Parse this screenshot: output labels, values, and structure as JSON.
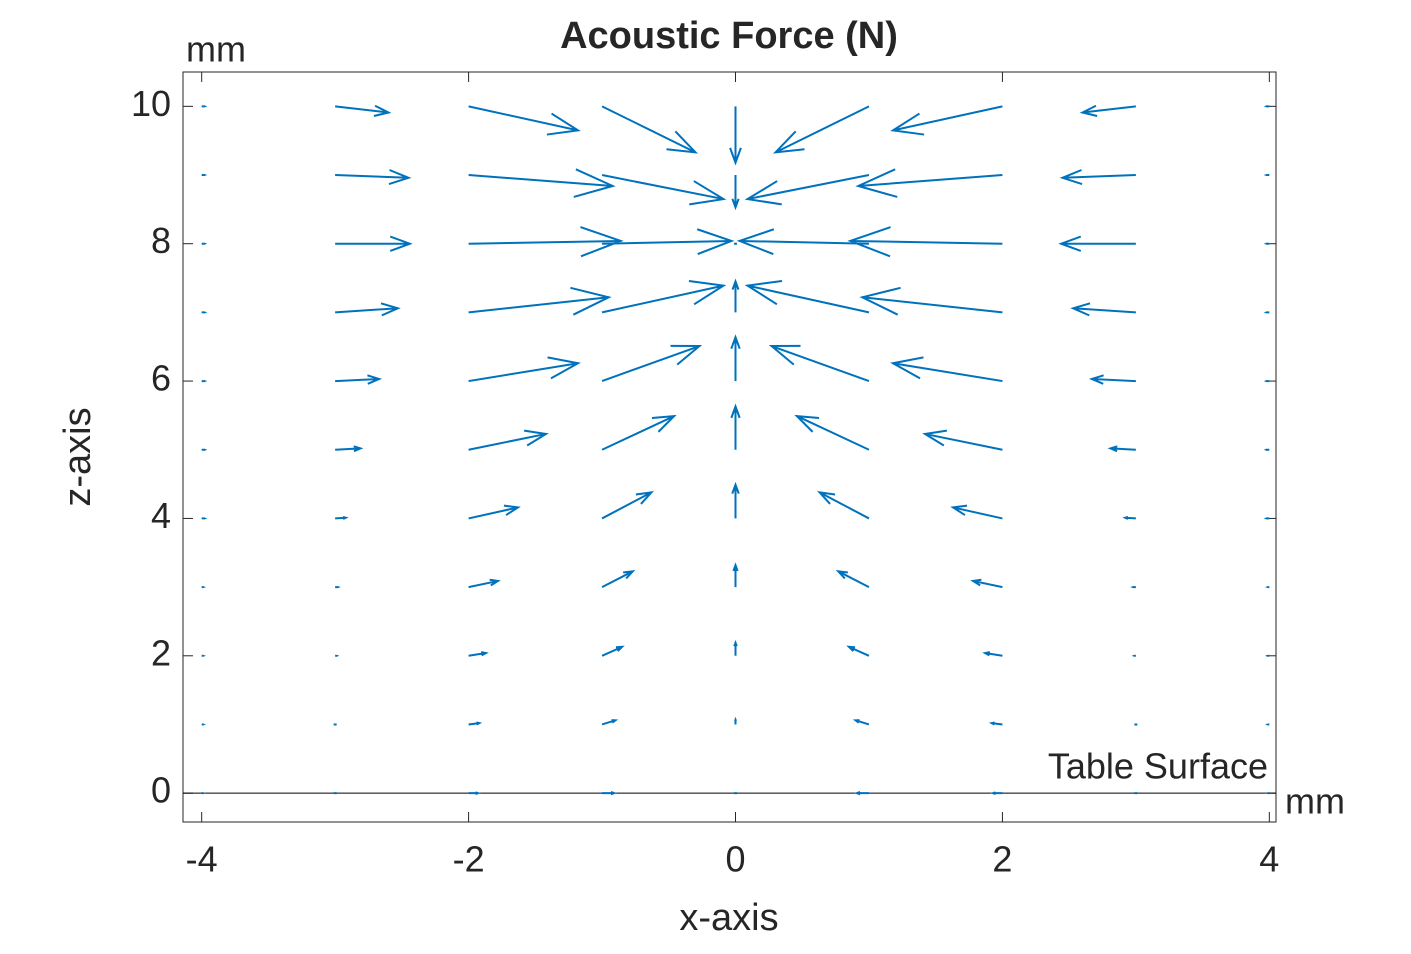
{
  "chart_data": {
    "type": "quiver",
    "title": "Acoustic Force (N)",
    "x_label": "x-axis",
    "y_label": "z-axis",
    "x_unit": "mm",
    "y_unit": "mm",
    "reference_line": {
      "y": 0,
      "label": "Table Surface"
    },
    "color": "#0072bd",
    "xlim": [
      -4.14,
      4.05
    ],
    "ylim": [
      -0.42,
      10.5
    ],
    "xticks": [
      -4,
      -2,
      0,
      2,
      4
    ],
    "yticks": [
      0,
      2,
      4,
      6,
      8,
      10
    ],
    "x": [
      -4,
      -3,
      -2,
      -1,
      0,
      1,
      2,
      3,
      4,
      -4,
      -3,
      -2,
      -1,
      0,
      1,
      2,
      3,
      4,
      -4,
      -3,
      -2,
      -1,
      0,
      1,
      2,
      3,
      4,
      -4,
      -3,
      -2,
      -1,
      0,
      1,
      2,
      3,
      4,
      -4,
      -3,
      -2,
      -1,
      0,
      1,
      2,
      3,
      4,
      -4,
      -3,
      -2,
      -1,
      0,
      1,
      2,
      3,
      4,
      -4,
      -3,
      -2,
      -1,
      0,
      1,
      2,
      3,
      4,
      -4,
      -3,
      -2,
      -1,
      0,
      1,
      2,
      3,
      4,
      -4,
      -3,
      -2,
      -1,
      0,
      1,
      2,
      3,
      4,
      -4,
      -3,
      -2,
      -1,
      0,
      1,
      2,
      3,
      4,
      -4,
      -3,
      -2,
      -1,
      0,
      1,
      2,
      3,
      4
    ],
    "y": [
      10,
      10,
      10,
      10,
      10,
      10,
      10,
      10,
      10,
      9,
      9,
      9,
      9,
      9,
      9,
      9,
      9,
      9,
      8,
      8,
      8,
      8,
      8,
      8,
      8,
      8,
      8,
      7,
      7,
      7,
      7,
      7,
      7,
      7,
      7,
      7,
      6,
      6,
      6,
      6,
      6,
      6,
      6,
      6,
      6,
      5,
      5,
      5,
      5,
      5,
      5,
      5,
      5,
      5,
      4,
      4,
      4,
      4,
      4,
      4,
      4,
      4,
      4,
      3,
      3,
      3,
      3,
      3,
      3,
      3,
      3,
      3,
      2,
      2,
      2,
      2,
      2,
      2,
      2,
      2,
      2,
      1,
      1,
      1,
      1,
      1,
      1,
      1,
      1,
      1,
      0,
      0,
      0,
      0,
      0,
      0,
      0,
      0,
      0
    ],
    "u": [
      0.02,
      0.4,
      0.82,
      0.7,
      0,
      -0.7,
      -0.82,
      -0.4,
      -0.02,
      0.02,
      0.55,
      1.08,
      0.91,
      0,
      -0.91,
      -1.08,
      -0.55,
      -0.02,
      0.02,
      0.56,
      1.14,
      0.97,
      0,
      -0.97,
      -1.14,
      -0.56,
      -0.02,
      0.02,
      0.47,
      1.05,
      0.91,
      0,
      -0.91,
      -1.05,
      -0.47,
      -0.02,
      0.02,
      0.33,
      0.82,
      0.73,
      0,
      -0.73,
      -0.82,
      -0.33,
      -0.02,
      0.02,
      0.19,
      0.58,
      0.54,
      0,
      -0.54,
      -0.58,
      -0.19,
      -0.02,
      0.02,
      0.08,
      0.37,
      0.37,
      0,
      -0.37,
      -0.37,
      -0.08,
      -0.02,
      0.01,
      0.02,
      0.22,
      0.23,
      0,
      -0.23,
      -0.22,
      -0.02,
      -0.01,
      0.01,
      0.01,
      0.13,
      0.15,
      0,
      -0.15,
      -0.13,
      -0.01,
      -0.01,
      0.01,
      0,
      0.08,
      0.1,
      0,
      -0.1,
      -0.08,
      0,
      -0.01,
      0.01,
      0,
      0.07,
      0.09,
      0,
      -0.09,
      -0.07,
      0,
      -0.01
    ],
    "v": [
      0,
      -0.09,
      -0.35,
      -0.67,
      -0.82,
      -0.67,
      -0.35,
      -0.09,
      0,
      0,
      -0.04,
      -0.16,
      -0.35,
      -0.47,
      -0.35,
      -0.16,
      -0.04,
      0,
      0,
      0,
      0.04,
      0.04,
      0,
      0.04,
      0.04,
      0,
      0,
      0,
      0.06,
      0.22,
      0.39,
      0.45,
      0.39,
      0.22,
      0.06,
      0,
      0,
      0.03,
      0.26,
      0.51,
      0.64,
      0.51,
      0.26,
      0.03,
      0,
      0,
      0.02,
      0.23,
      0.49,
      0.63,
      0.49,
      0.23,
      0.02,
      0,
      0,
      0.01,
      0.16,
      0.38,
      0.49,
      0.38,
      0.16,
      0.01,
      0,
      0,
      0,
      0.09,
      0.23,
      0.32,
      0.23,
      0.09,
      0,
      0,
      0,
      0,
      0.04,
      0.13,
      0.19,
      0.13,
      0.04,
      0,
      0,
      0,
      0,
      0.02,
      0.06,
      0.07,
      0.06,
      0.02,
      0,
      0,
      0,
      0,
      0,
      0,
      0,
      0,
      0,
      0,
      0
    ]
  }
}
